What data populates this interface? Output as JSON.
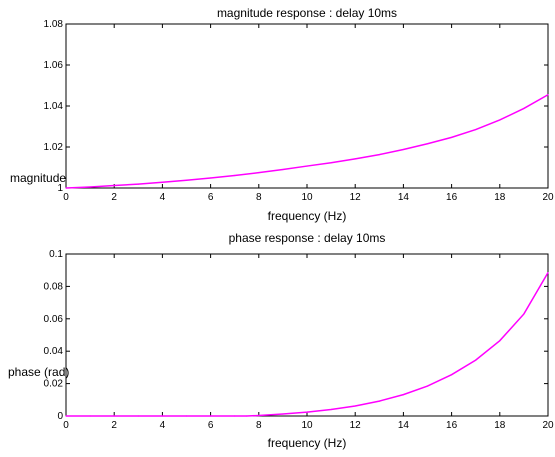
{
  "colors": {
    "background": "#ffffff",
    "axes": "#000000",
    "series": "#ff00ff"
  },
  "chart_data": [
    {
      "type": "line",
      "title": "magnitude response : delay 10ms",
      "xlabel": "frequency (Hz)",
      "ylabel": "magnitude",
      "xlim": [
        0,
        20
      ],
      "ylim": [
        1,
        1.08
      ],
      "xticks": [
        0,
        2,
        4,
        6,
        8,
        10,
        12,
        14,
        16,
        18,
        20
      ],
      "yticks": [
        1,
        1.02,
        1.04,
        1.06,
        1.08
      ],
      "xtick_labels": [
        "0",
        "2",
        "4",
        "6",
        "8",
        "10",
        "12",
        "14",
        "16",
        "18",
        "20"
      ],
      "ytick_labels": [
        "1",
        "1.02",
        "1.04",
        "1.06",
        "1.08"
      ],
      "grid": false,
      "legend": "none",
      "series": [
        {
          "x": [
            0,
            1,
            2,
            3,
            4,
            5,
            6,
            7,
            8,
            9,
            10,
            11,
            12,
            13,
            14,
            15,
            16,
            17,
            18,
            19,
            20
          ],
          "values": [
            1.0,
            1.0005,
            1.0012,
            1.0019,
            1.0028,
            1.0038,
            1.0049,
            1.0061,
            1.0075,
            1.009,
            1.0107,
            1.0123,
            1.0142,
            1.0163,
            1.0188,
            1.0216,
            1.0247,
            1.0285,
            1.0332,
            1.0388,
            1.0455
          ]
        }
      ]
    },
    {
      "type": "line",
      "title": "phase response : delay 10ms",
      "xlabel": "frequency (Hz)",
      "ylabel": "phase (rad)",
      "xlim": [
        0,
        20
      ],
      "ylim": [
        0,
        0.1
      ],
      "xticks": [
        0,
        2,
        4,
        6,
        8,
        10,
        12,
        14,
        16,
        18,
        20
      ],
      "yticks": [
        0,
        0.02,
        0.04,
        0.06,
        0.08,
        0.1
      ],
      "xtick_labels": [
        "0",
        "2",
        "4",
        "6",
        "8",
        "10",
        "12",
        "14",
        "16",
        "18",
        "20"
      ],
      "ytick_labels": [
        "0",
        "0.02",
        "0.04",
        "0.06",
        "0.08",
        "0.1"
      ],
      "grid": false,
      "legend": "none",
      "series": [
        {
          "x": [
            0,
            1,
            2,
            3,
            4,
            5,
            6,
            7,
            7.5,
            8,
            9,
            10,
            11,
            12,
            13,
            14,
            15,
            16,
            17,
            18,
            19,
            20
          ],
          "values": [
            0,
            0,
            0,
            0,
            0,
            0,
            0,
            0,
            0,
            0.0003,
            0.0012,
            0.0024,
            0.004,
            0.0062,
            0.0092,
            0.0132,
            0.0185,
            0.0255,
            0.0345,
            0.0465,
            0.063,
            0.0885
          ]
        }
      ]
    }
  ]
}
